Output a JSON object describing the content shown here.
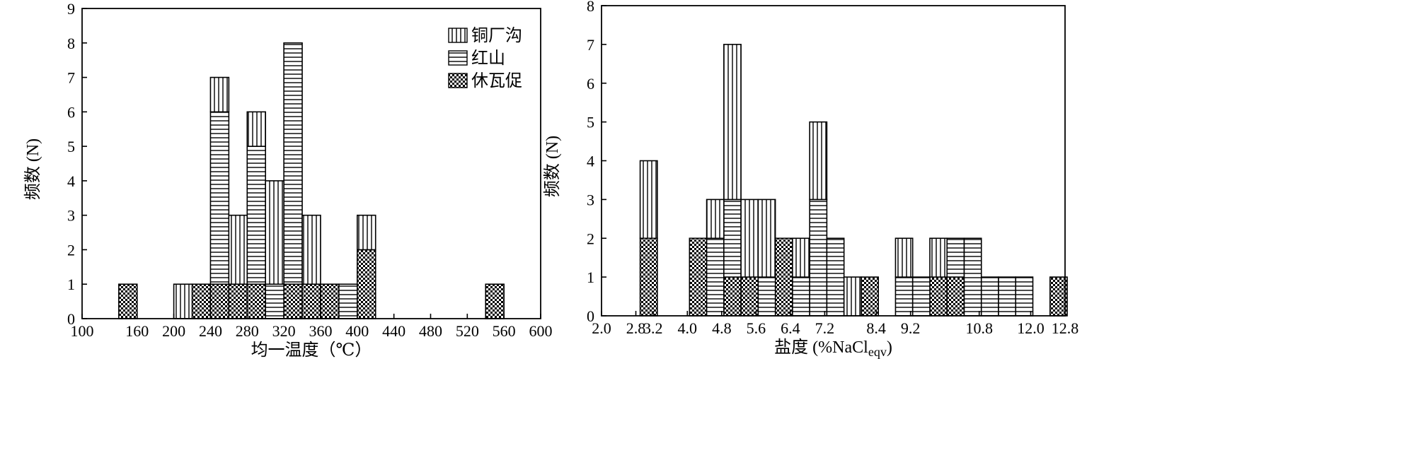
{
  "chart_data": [
    {
      "type": "bar",
      "stacked": true,
      "xlabel": "均一温度（℃）",
      "ylabel": "频数 (N)",
      "xlim": [
        100,
        600
      ],
      "ylim": [
        0,
        9
      ],
      "x_ticks": [
        100,
        160,
        200,
        240,
        280,
        320,
        360,
        400,
        440,
        480,
        520,
        560,
        600
      ],
      "y_ticks": [
        0,
        1,
        2,
        3,
        4,
        5,
        6,
        7,
        8,
        9
      ],
      "bin_width": 20,
      "legend_position": "top-right",
      "series": [
        {
          "name": "休瓦促",
          "pattern": "checker",
          "bins": [
            {
              "x0": 140,
              "value": 1
            },
            {
              "x0": 220,
              "value": 1
            },
            {
              "x0": 240,
              "value": 1
            },
            {
              "x0": 260,
              "value": 1
            },
            {
              "x0": 280,
              "value": 1
            },
            {
              "x0": 320,
              "value": 1
            },
            {
              "x0": 340,
              "value": 1
            },
            {
              "x0": 360,
              "value": 1
            },
            {
              "x0": 400,
              "value": 2
            },
            {
              "x0": 540,
              "value": 1
            }
          ]
        },
        {
          "name": "红山",
          "pattern": "horizontal",
          "bins": [
            {
              "x0": 240,
              "value": 5
            },
            {
              "x0": 280,
              "value": 4
            },
            {
              "x0": 300,
              "value": 1
            },
            {
              "x0": 320,
              "value": 7
            },
            {
              "x0": 380,
              "value": 1
            }
          ]
        },
        {
          "name": "铜厂沟",
          "pattern": "vertical",
          "bins": [
            {
              "x0": 200,
              "value": 1
            },
            {
              "x0": 240,
              "value": 1
            },
            {
              "x0": 260,
              "value": 2
            },
            {
              "x0": 280,
              "value": 1
            },
            {
              "x0": 300,
              "value": 3
            },
            {
              "x0": 340,
              "value": 2
            },
            {
              "x0": 400,
              "value": 1
            }
          ]
        }
      ]
    },
    {
      "type": "bar",
      "stacked": true,
      "xlabel": "盐度",
      "xlabel_unit_main": "(%NaCl",
      "xlabel_unit_sub": "eqv",
      "xlabel_unit_close": ")",
      "ylabel": "频数 (N)",
      "xlim": [
        2.0,
        12.8
      ],
      "ylim": [
        0,
        8
      ],
      "x_ticks": [
        2.0,
        2.8,
        3.2,
        4.0,
        4.8,
        5.6,
        6.4,
        7.2,
        8.4,
        9.2,
        10.8,
        12.0,
        12.8
      ],
      "y_ticks": [
        0,
        1,
        2,
        3,
        4,
        5,
        6,
        7,
        8
      ],
      "bin_width": 0.4,
      "series": [
        {
          "name": "休瓦促",
          "pattern": "checker",
          "bins": [
            {
              "x0": 2.9,
              "value": 2
            },
            {
              "x0": 4.05,
              "value": 2
            },
            {
              "x0": 4.85,
              "value": 1
            },
            {
              "x0": 5.25,
              "value": 1
            },
            {
              "x0": 6.05,
              "value": 2
            },
            {
              "x0": 8.05,
              "value": 1
            },
            {
              "x0": 9.65,
              "value": 1
            },
            {
              "x0": 10.05,
              "value": 1
            },
            {
              "x0": 12.45,
              "value": 1
            }
          ]
        },
        {
          "name": "红山",
          "pattern": "horizontal",
          "bins": [
            {
              "x0": 4.45,
              "value": 2
            },
            {
              "x0": 4.85,
              "value": 2
            },
            {
              "x0": 5.65,
              "value": 1
            },
            {
              "x0": 6.45,
              "value": 1
            },
            {
              "x0": 6.85,
              "value": 3
            },
            {
              "x0": 7.25,
              "value": 2
            },
            {
              "x0": 8.85,
              "value": 1
            },
            {
              "x0": 9.25,
              "value": 1
            },
            {
              "x0": 10.05,
              "value": 1
            },
            {
              "x0": 10.45,
              "value": 2
            },
            {
              "x0": 10.85,
              "value": 1
            },
            {
              "x0": 11.25,
              "value": 1
            },
            {
              "x0": 11.65,
              "value": 1
            }
          ]
        },
        {
          "name": "铜厂沟",
          "pattern": "vertical",
          "bins": [
            {
              "x0": 2.9,
              "value": 2
            },
            {
              "x0": 4.45,
              "value": 1
            },
            {
              "x0": 4.85,
              "value": 4
            },
            {
              "x0": 5.25,
              "value": 2
            },
            {
              "x0": 5.65,
              "value": 2
            },
            {
              "x0": 6.45,
              "value": 1
            },
            {
              "x0": 6.85,
              "value": 2
            },
            {
              "x0": 7.65,
              "value": 1
            },
            {
              "x0": 8.85,
              "value": 1
            },
            {
              "x0": 9.65,
              "value": 1
            }
          ]
        }
      ]
    }
  ]
}
